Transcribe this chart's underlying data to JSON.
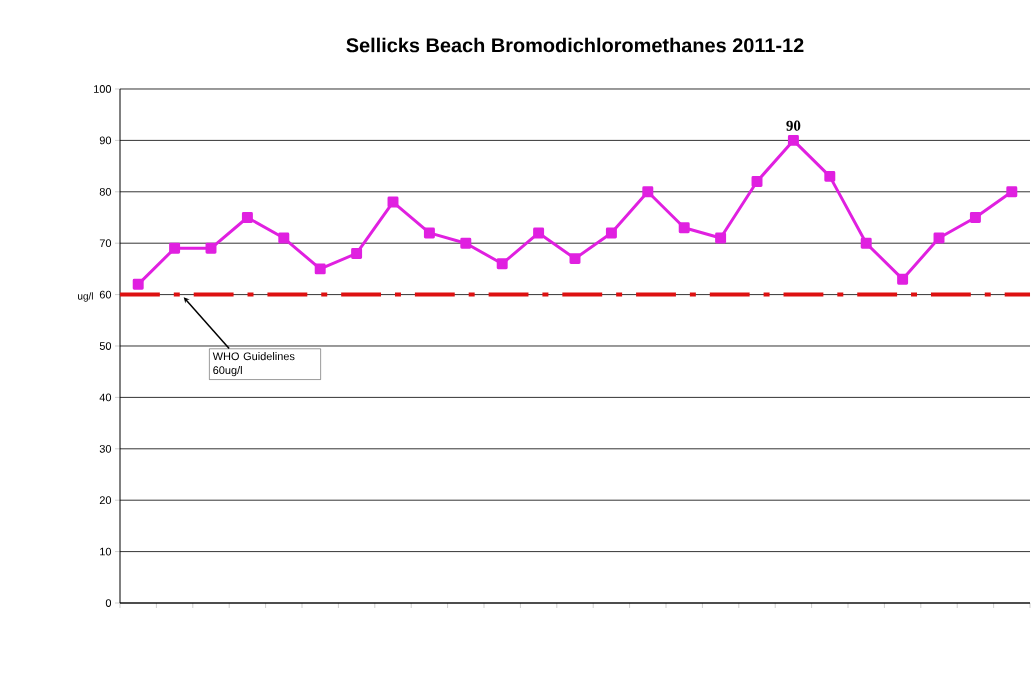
{
  "chart_data": {
    "type": "line",
    "title": "Sellicks Beach Bromodichloromethanes 2011-12",
    "ylabel": "ug/l",
    "categories": [
      null,
      null,
      null,
      null,
      null,
      null,
      null,
      null,
      null,
      null,
      null,
      null,
      null,
      null,
      null,
      null,
      null,
      null,
      null,
      null,
      null,
      null,
      null,
      null,
      null
    ],
    "series": [
      {
        "color": "#e020e0",
        "values": [
          62,
          69,
          69,
          75,
          71,
          65,
          68,
          78,
          72,
          70,
          66,
          72,
          67,
          72,
          80,
          73,
          71,
          82,
          90,
          83,
          70,
          63,
          71,
          75,
          80
        ],
        "value_labels": [
          null,
          null,
          null,
          null,
          null,
          null,
          null,
          null,
          null,
          null,
          null,
          null,
          null,
          null,
          null,
          null,
          null,
          null,
          "90",
          null,
          null,
          null,
          null,
          null,
          null
        ]
      }
    ],
    "ylim": [
      0,
      100
    ],
    "yticks": [
      0,
      10,
      20,
      30,
      40,
      50,
      60,
      70,
      80,
      90,
      100
    ],
    "grid": "y",
    "marker": "square",
    "ref_lines": [
      {
        "axis": "y",
        "value": 60,
        "label": "WHO Guidelines 60ug/l",
        "color": "#dd1111",
        "line_style": "dashed"
      }
    ]
  }
}
